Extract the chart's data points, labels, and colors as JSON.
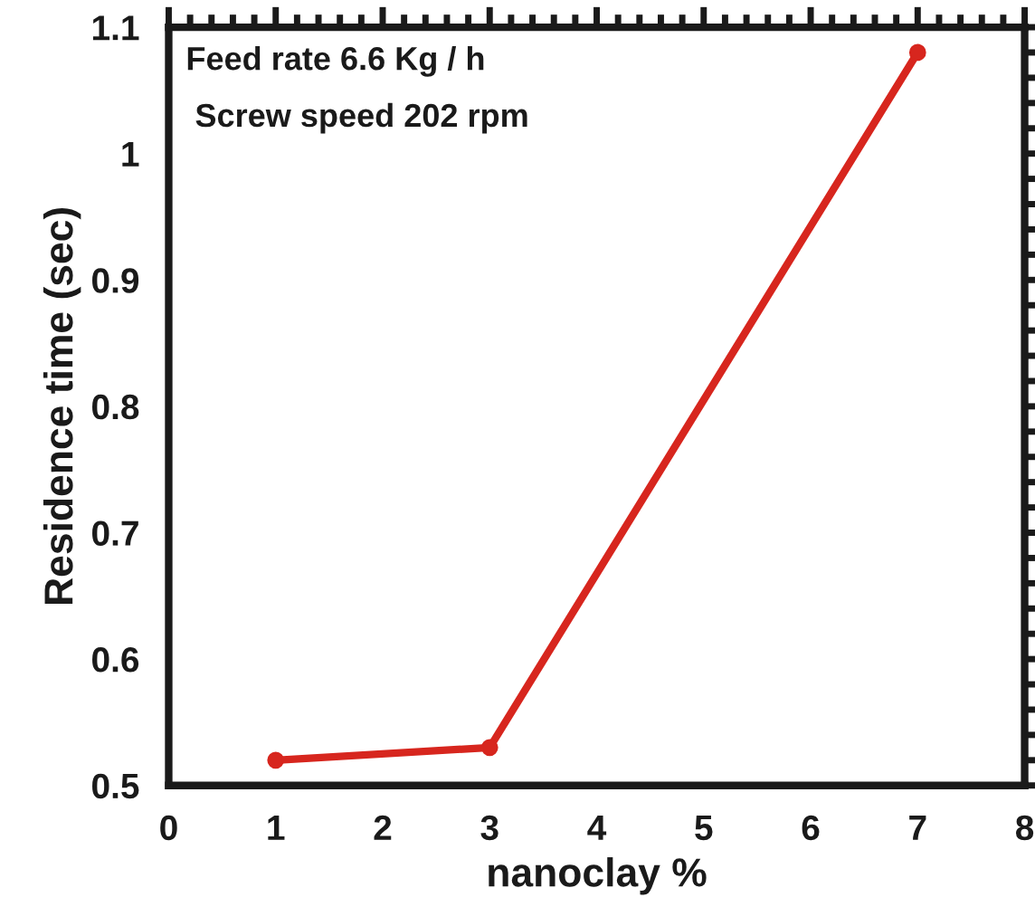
{
  "chart_data": {
    "type": "line",
    "xlabel": "nanoclay %",
    "ylabel": "Residence time (sec)",
    "x": [
      1,
      3,
      7
    ],
    "series": [
      {
        "color": "#d7261e",
        "values": [
          0.52,
          0.53,
          1.08
        ]
      }
    ],
    "xlim": [
      0,
      8
    ],
    "xticks": [
      0,
      1,
      2,
      3,
      4,
      5,
      6,
      7,
      8
    ],
    "ylim": [
      0.5,
      1.1
    ],
    "yticks": [
      {
        "value": 0.5,
        "label": "0.5"
      },
      {
        "value": 0.6,
        "label": "0.6"
      },
      {
        "value": 0.7,
        "label": "0.7"
      },
      {
        "value": 0.8,
        "label": "0.8"
      },
      {
        "value": 0.9,
        "label": "0.9"
      },
      {
        "value": 1.0,
        "label": "1"
      },
      {
        "value": 1.1,
        "label": "1.1"
      }
    ],
    "annotations": [
      "Feed rate 6.6 Kg / h",
      " Screw speed 202 rpm"
    ],
    "marker": "circle",
    "line_style": "solid",
    "grid": false,
    "legend": false
  }
}
